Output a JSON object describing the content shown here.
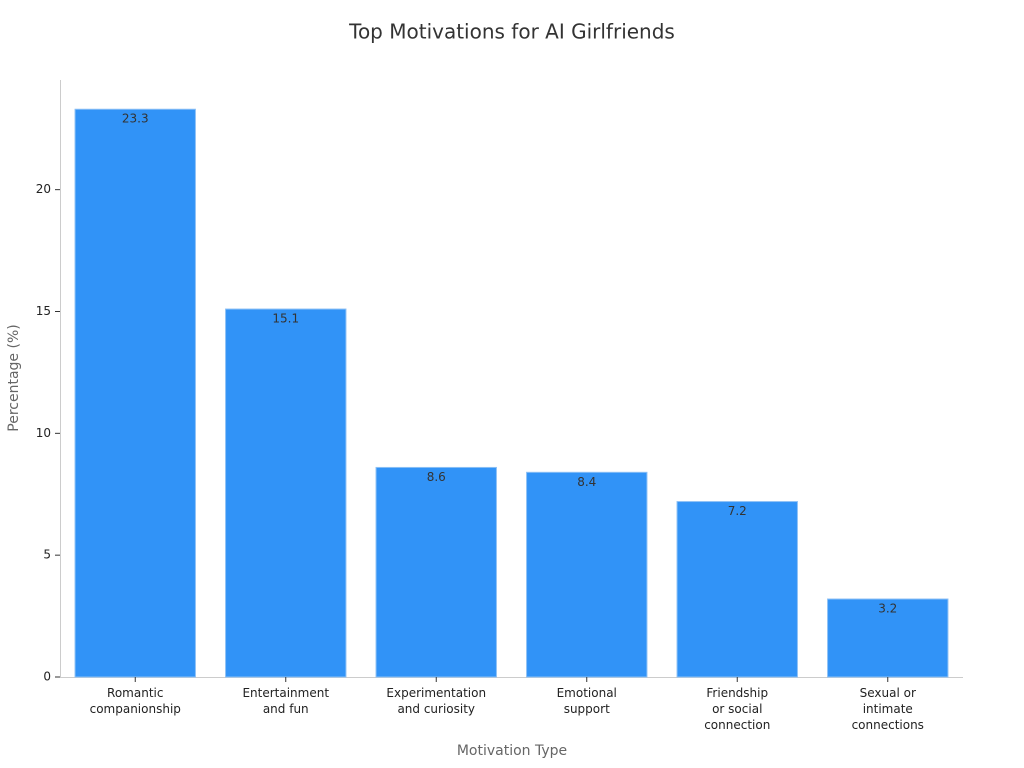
{
  "chart_data": {
    "type": "bar",
    "title": "Top Motivations for AI Girlfriends",
    "x_label": "Motivation Type",
    "y_label": "Percentage (%)",
    "categories": [
      [
        "Romantic",
        "companionship"
      ],
      [
        "Entertainment",
        "and fun"
      ],
      [
        "Experimentation",
        "and curiosity"
      ],
      [
        "Emotional",
        "support"
      ],
      [
        "Friendship",
        "or social",
        "connection"
      ],
      [
        "Sexual or",
        "intimate",
        "connections"
      ]
    ],
    "values": [
      23.3,
      15.1,
      8.6,
      8.4,
      7.2,
      3.2
    ],
    "color": "#3193f7",
    "ylim": [
      0,
      24.5
    ],
    "yticks": [
      0,
      5,
      10,
      15,
      20
    ],
    "grid": false
  }
}
